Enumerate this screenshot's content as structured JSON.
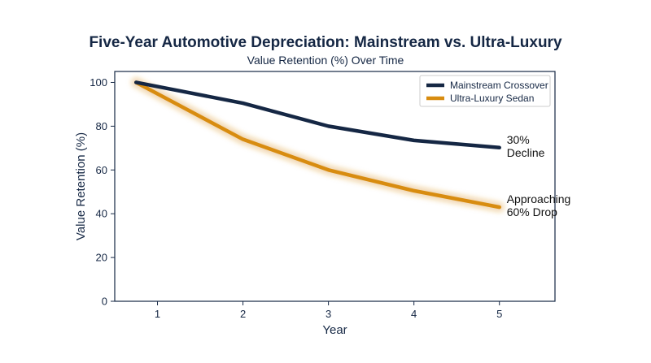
{
  "chart_data": {
    "type": "line",
    "title": "Five-Year Automotive Depreciation: Mainstream vs. Ultra-Luxury",
    "subtitle": "Value Retention (%) Over Time",
    "xlabel": "Year",
    "ylabel": "Value Retention (%)",
    "x": [
      0.75,
      2,
      3,
      4,
      5
    ],
    "x_ticks": [
      1,
      2,
      3,
      4,
      5
    ],
    "xlim": [
      0.5,
      5.65
    ],
    "ylim": [
      0,
      105
    ],
    "y_ticks": [
      0,
      20,
      40,
      60,
      80,
      100
    ],
    "grid": false,
    "legend_position": "top-right",
    "series": [
      {
        "name": "Mainstream Crossover",
        "values": [
          100,
          90.5,
          80,
          73.5,
          70.2
        ],
        "color": "#152744"
      },
      {
        "name": "Ultra-Luxury Sedan",
        "values": [
          100,
          74,
          60,
          50.5,
          43
        ],
        "color": "#d88c10",
        "glow": true
      }
    ],
    "annotations": [
      {
        "series": 0,
        "lines": [
          "30%",
          "Decline"
        ]
      },
      {
        "series": 1,
        "lines": [
          "Approaching",
          "60% Drop"
        ]
      }
    ]
  }
}
